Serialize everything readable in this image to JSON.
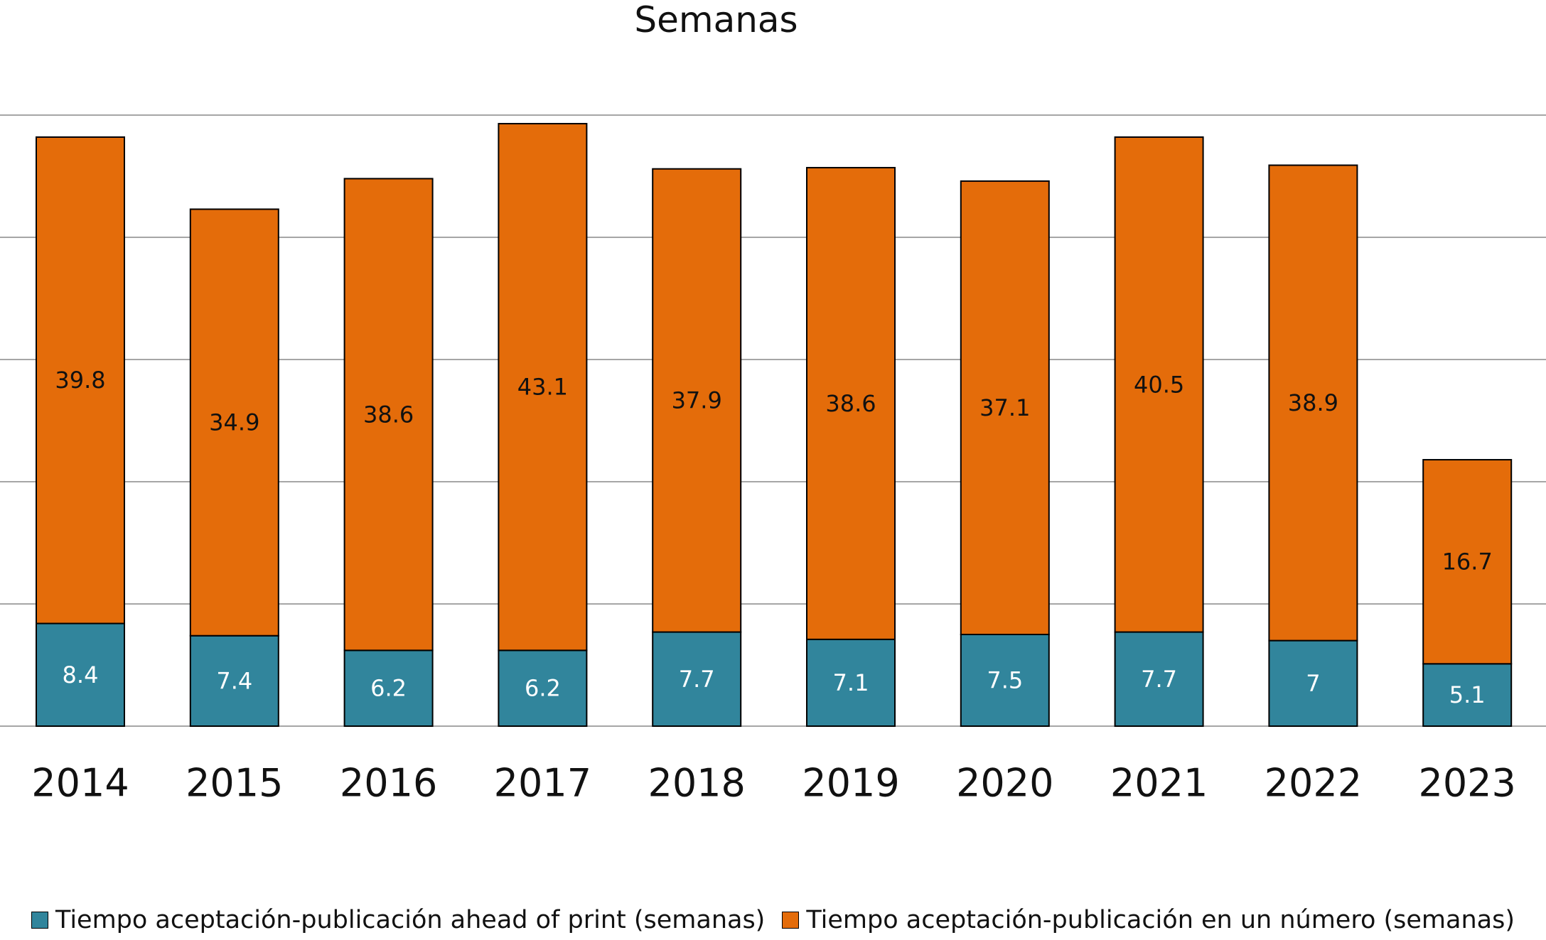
{
  "colors": {
    "ahead": "#31859c",
    "numero": "#e46c0a",
    "grid": "#a6a6a6",
    "outline": "#000000"
  },
  "chart_data": {
    "type": "bar",
    "stacked": true,
    "title": "Semanas",
    "xlabel": "",
    "ylabel": "",
    "ylim": [
      0,
      50
    ],
    "grid": true,
    "legend_position": "bottom",
    "categories": [
      "2014",
      "2015",
      "2016",
      "2017",
      "2018",
      "2019",
      "2020",
      "2021",
      "2022",
      "2023"
    ],
    "series": [
      {
        "name": "Tiempo aceptación-publicación ahead of print (semanas)",
        "values": [
          8.4,
          7.4,
          6.2,
          6.2,
          7.7,
          7.1,
          7.5,
          7.7,
          7,
          5.1
        ],
        "labels": [
          "8.4",
          "7.4",
          "6.2",
          "6.2",
          "7.7",
          "7.1",
          "7.5",
          "7.7",
          "7",
          "5.1"
        ]
      },
      {
        "name": "Tiempo aceptación-publicación en un número (semanas)",
        "values": [
          39.8,
          34.9,
          38.6,
          43.1,
          37.9,
          38.6,
          37.1,
          40.5,
          38.9,
          16.7
        ],
        "labels": [
          "39.8",
          "34.9",
          "38.6",
          "43.1",
          "37.9",
          "38.6",
          "37.1",
          "40.5",
          "38.9",
          "16.7"
        ]
      }
    ]
  }
}
